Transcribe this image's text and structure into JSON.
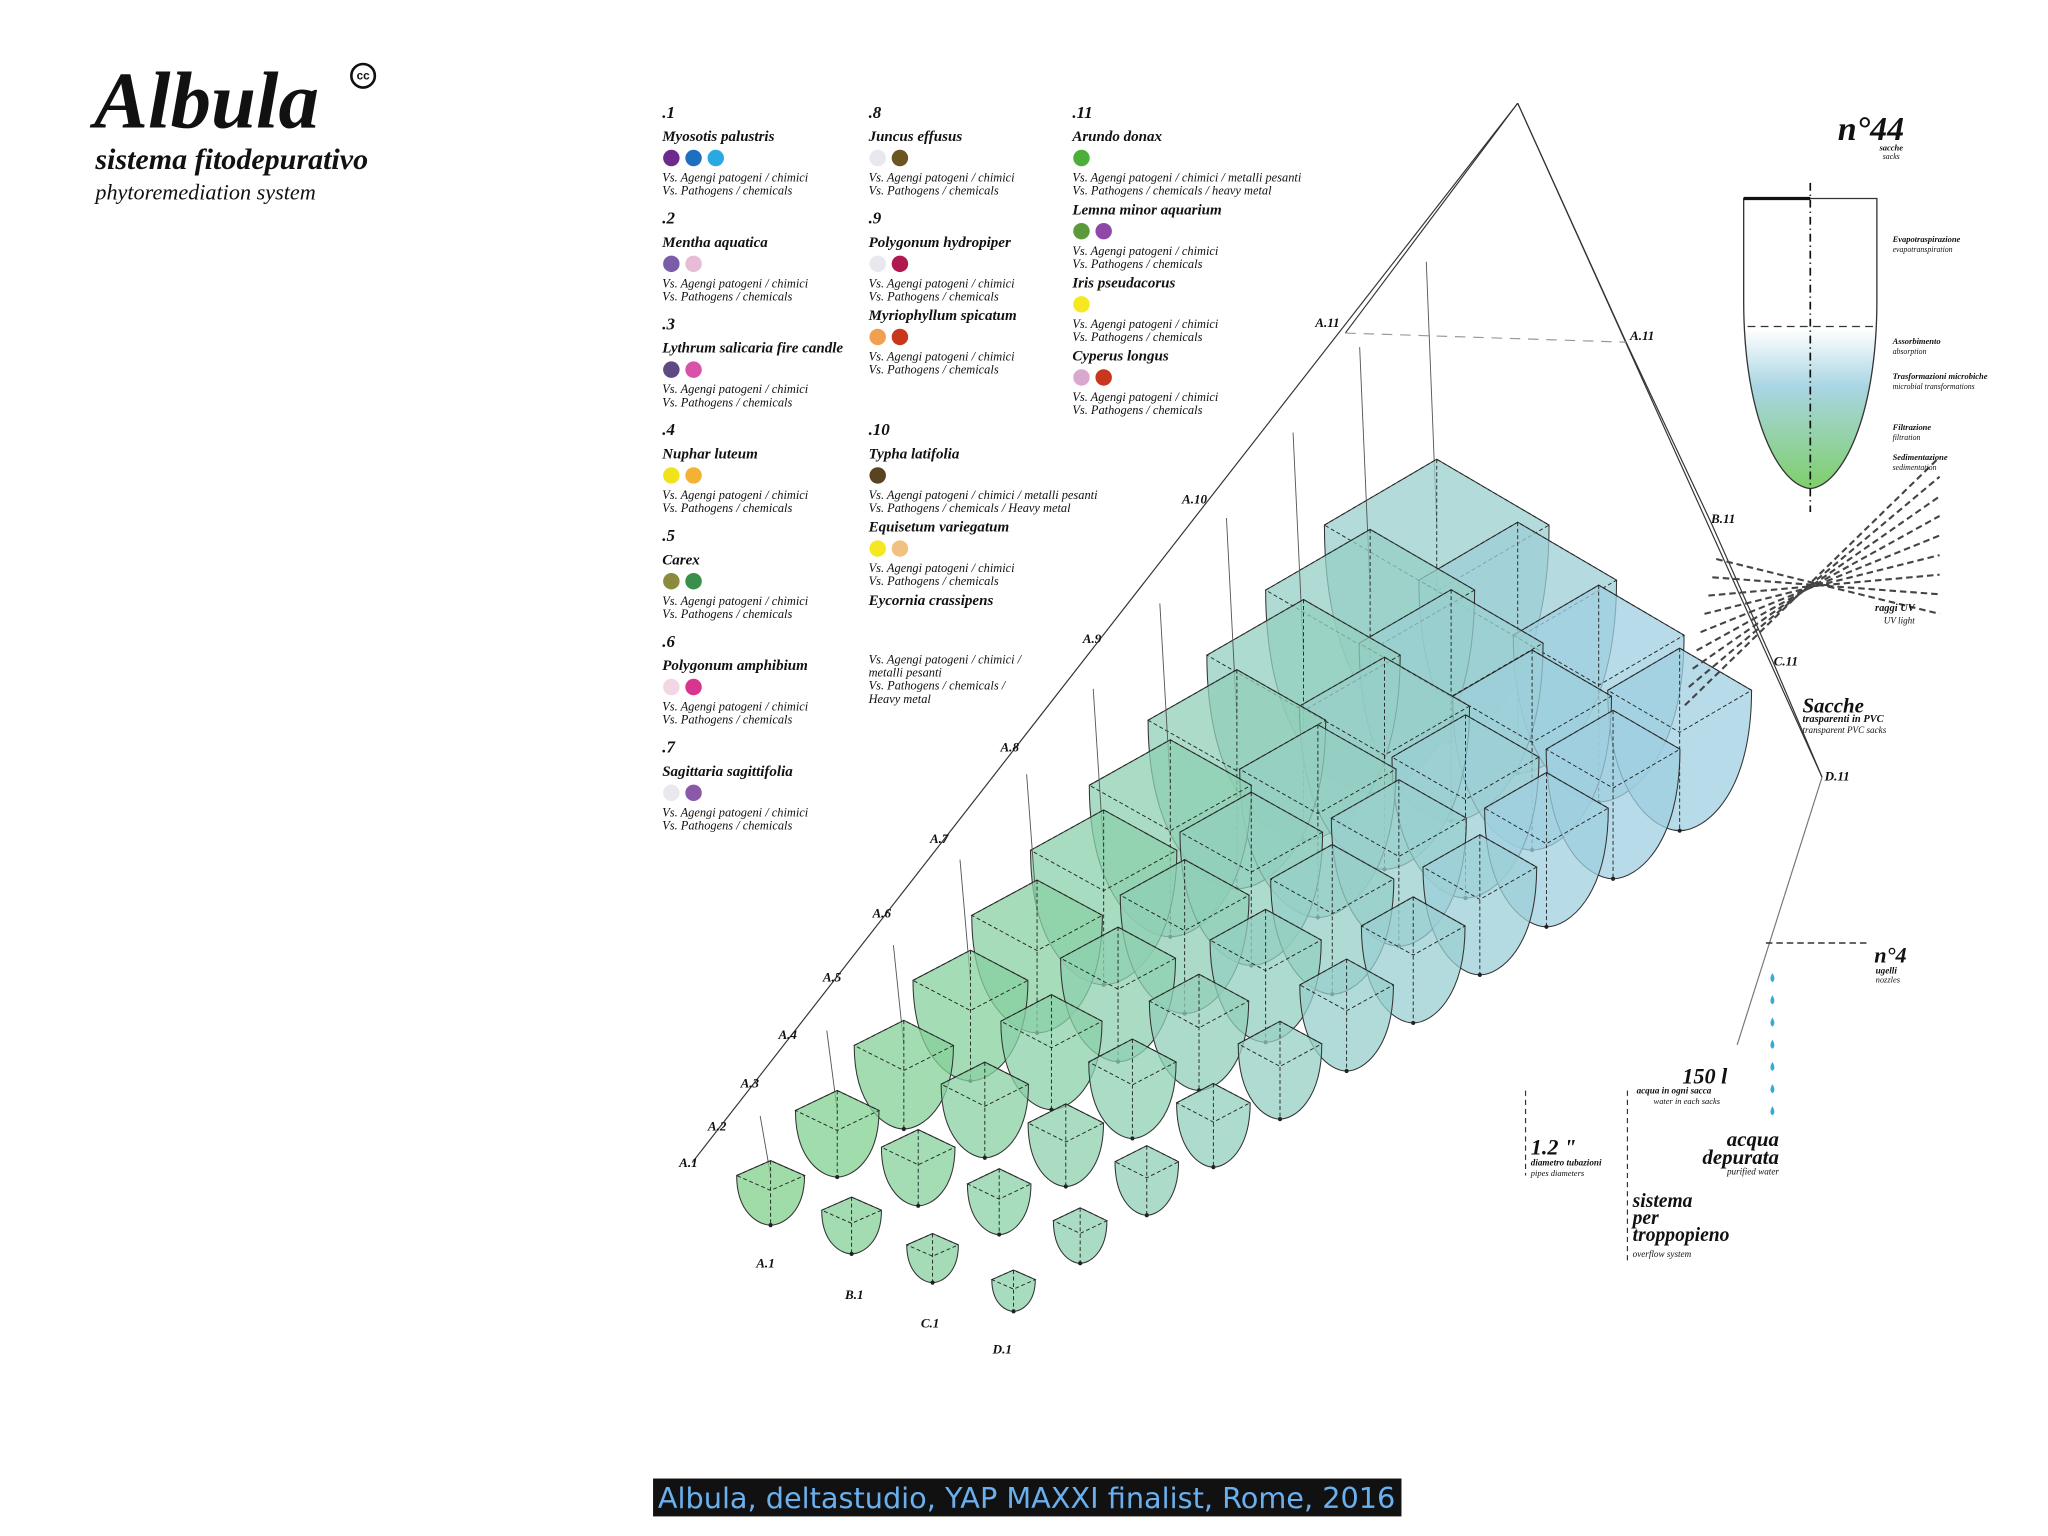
{
  "header": {
    "title": "Albula",
    "cc": "cc",
    "subtitle": "sistema fitodepurativo",
    "subtitle_en": "phytoremediation system"
  },
  "legend": {
    "columns": [
      [
        {
          "number": ".1",
          "species": [
            {
              "name": "Myosotis palustris",
              "colors": [
                "#6b2a8c",
                "#1f6fc0",
                "#29a9e0"
              ],
              "lines": [
                "Vs. Agengi patogeni / chimici",
                "Vs. Pathogens / chemicals"
              ]
            }
          ]
        },
        {
          "number": ".2",
          "species": [
            {
              "name": "Mentha aquatica",
              "colors": [
                "#7a5ca8",
                "#e6bcd6"
              ],
              "lines": [
                "Vs. Agengi patogeni / chimici",
                "Vs. Pathogens / chemicals"
              ]
            }
          ]
        },
        {
          "number": ".3",
          "species": [
            {
              "name": "Lythrum salicaria fire candle",
              "colors": [
                "#5e4a82",
                "#d952a8"
              ],
              "lines": [
                "Vs. Agengi patogeni / chimici",
                "Vs. Pathogens / chemicals"
              ]
            }
          ]
        },
        {
          "number": ".4",
          "species": [
            {
              "name": "Nuphar luteum",
              "colors": [
                "#f2e21c",
                "#f3b233"
              ],
              "lines": [
                "Vs. Agengi patogeni / chimici",
                "Vs. Pathogens / chemicals"
              ]
            }
          ]
        },
        {
          "number": ".5",
          "species": [
            {
              "name": "Carex",
              "colors": [
                "#8c8a3c",
                "#3a8f4a"
              ],
              "lines": [
                "Vs. Agengi patogeni / chimici",
                "Vs. Pathogens / chemicals"
              ]
            }
          ]
        },
        {
          "number": ".6",
          "species": [
            {
              "name": "Polygonum amphibium",
              "colors": [
                "#f2d6e4",
                "#d9358f"
              ],
              "lines": [
                "Vs. Agengi patogeni / chimici",
                "Vs. Pathogens / chemicals"
              ]
            }
          ]
        },
        {
          "number": ".7",
          "species": [
            {
              "name": "Sagittaria sagittifolia",
              "colors": [
                "#e8e8ee",
                "#8a5aa8"
              ],
              "lines": [
                "Vs. Agengi patogeni / chimici",
                "Vs. Pathogens / chemicals"
              ]
            }
          ]
        }
      ],
      [
        {
          "number": ".8",
          "species": [
            {
              "name": "Juncus effusus",
              "colors": [
                "#e8e8ee",
                "#6b5520"
              ],
              "lines": [
                "Vs. Agengi patogeni / chimici",
                "Vs. Pathogens / chemicals"
              ]
            }
          ]
        },
        {
          "number": ".9",
          "species": [
            {
              "name": "Polygonum hydropiper",
              "colors": [
                "#e8e8ee",
                "#b0184f"
              ],
              "lines": [
                "Vs. Agengi patogeni / chimici",
                "Vs. Pathogens / chemicals"
              ]
            },
            {
              "name": "Myriophyllum spicatum",
              "colors": [
                "#f0a050",
                "#c8361e"
              ],
              "lines": [
                "Vs. Agengi patogeni / chimici",
                "Vs. Pathogens / chemicals"
              ]
            }
          ]
        },
        {
          "number": ".10",
          "species": [
            {
              "name": "Typha latifolia",
              "colors": [
                "#5a4320"
              ],
              "lines": [
                "Vs. Agengi patogeni / chimici / metalli pesanti",
                "Vs. Pathogens / chemicals / Heavy metal"
              ]
            },
            {
              "name": "Equisetum variegatum",
              "colors": [
                "#f5e820",
                "#f2c080"
              ],
              "lines": [
                "Vs. Agengi patogeni / chimici",
                "Vs. Pathogens / chemicals"
              ]
            },
            {
              "name": "Eycornia crassipens",
              "colors": [],
              "lines": [
                "Vs. Agengi patogeni / chimici /",
                "metalli pesanti",
                "Vs. Pathogens / chemicals /",
                "Heavy metal"
              ]
            }
          ]
        }
      ],
      [
        {
          "number": ".11",
          "species": [
            {
              "name": "Arundo donax",
              "colors": [
                "#4caf3a"
              ],
              "lines": [
                "Vs. Agengi patogeni / chimici / metalli pesanti",
                "Vs. Pathogens / chemicals / heavy metal"
              ]
            },
            {
              "name": "Lemna minor aquarium",
              "colors": [
                "#5a9a3a",
                "#9048a8"
              ],
              "lines": [
                "Vs. Agengi patogeni / chimici",
                "Vs. Pathogens / chemicals"
              ]
            },
            {
              "name": "Iris pseudacorus",
              "colors": [
                "#f5e820"
              ],
              "lines": [
                "Vs. Agengi patogeni / chimici",
                "Vs. Pathogens / chemicals"
              ]
            },
            {
              "name": "Cyperus longus",
              "colors": [
                "#d8a8d0",
                "#c8361e"
              ],
              "lines": [
                "Vs. Agengi patogeni / chimici",
                "Vs. Pathogens / chemicals"
              ]
            }
          ]
        }
      ]
    ]
  },
  "process": {
    "count": "n°44",
    "count_it": "sacche",
    "count_en": "sacks",
    "stages": [
      {
        "it": "Evapotraspirazione",
        "en": "evapotranspiration"
      },
      {
        "it": "Assorbimento",
        "en": "absorption"
      },
      {
        "it": "Trasformazioni microbiche",
        "en": "microbial transformations"
      },
      {
        "it": "Filtrazione",
        "en": "filtration"
      },
      {
        "it": "Sedimentazione",
        "en": "sedimentation"
      }
    ]
  },
  "labels": {
    "row_a": [
      "A.1",
      "A.2",
      "A.3",
      "A.4",
      "A.5",
      "A.6",
      "A.7",
      "A.8",
      "A.9",
      "A.10",
      "A.11"
    ],
    "right": [
      "A.11",
      "B.11",
      "C.11",
      "D.11"
    ],
    "bottom": [
      "A.1",
      "B.1",
      "C.1",
      "D.1"
    ]
  },
  "annotations": {
    "uv": {
      "title": "raggi UV",
      "en": "UV light"
    },
    "sacks": {
      "title": "Sacche",
      "it": "trasparenti in PVC",
      "en": "transparent PVC sacks"
    },
    "nozzles": {
      "title": "n°4",
      "it": "ugelli",
      "en": "nozzles"
    },
    "volume": {
      "title": "150 l",
      "it": "acqua in ogni sacca",
      "en": "water in each sacks"
    },
    "purified": {
      "lines": [
        "acqua",
        "depurata"
      ],
      "en": "purified water"
    },
    "pipes": {
      "title": "1.2 \"",
      "it": "diametro tubazioni",
      "en": "pipes diameters"
    },
    "overflow": {
      "lines": [
        "sistema",
        "per",
        "troppopieno"
      ],
      "en": "overflow system"
    }
  },
  "caption": "Albula, deltastudio, YAP MAXXI finalist, Rome, 2016"
}
